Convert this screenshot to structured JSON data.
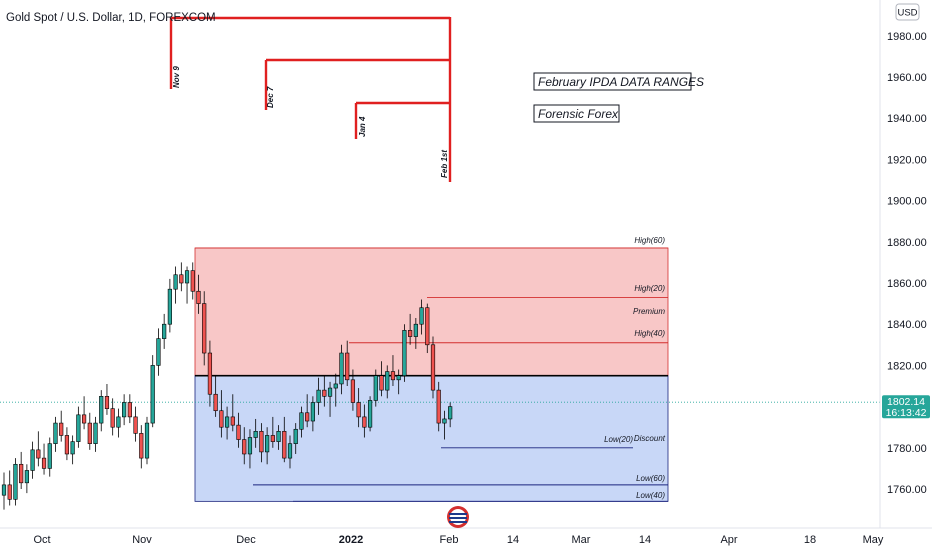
{
  "header": {
    "title": "Gold Spot / U.S. Dollar, 1D, FOREXCOM"
  },
  "currency_badge": "USD",
  "last_price": {
    "value": "1802.14",
    "countdown": "16:13:42",
    "color": "#26a69a"
  },
  "notes": [
    {
      "name": "note-ipda",
      "text": "February IPDA DATA RANGES"
    },
    {
      "name": "note-forensic",
      "text": "Forensic Forex"
    }
  ],
  "zones": {
    "premium": {
      "from": 1815,
      "to": 1877,
      "color": "#f8c7c7"
    },
    "discount": {
      "from": 1754,
      "to": 1815,
      "color": "#c8d7f7"
    }
  },
  "levels": [
    {
      "name": "level-high-60",
      "label": "High(60)",
      "value": 1877,
      "color": "#d32f2f"
    },
    {
      "name": "level-high-20",
      "label": "High(20)",
      "value": 1853,
      "color": "#d32f2f"
    },
    {
      "name": "level-premium",
      "label": "Premium",
      "value": null,
      "color": "#131722"
    },
    {
      "name": "level-high-40",
      "label": "High(40)",
      "value": 1831,
      "color": "#d32f2f"
    },
    {
      "name": "level-equilibrium",
      "label": "",
      "value": 1815,
      "color": "#000000"
    },
    {
      "name": "level-low-20",
      "label": "Low(20)",
      "value": 1780,
      "color": "#1a237e"
    },
    {
      "name": "level-discount",
      "label": "Discount",
      "value": null,
      "color": "#131722"
    },
    {
      "name": "level-low-60",
      "label": "Low(60)",
      "value": 1762,
      "color": "#1a237e"
    },
    {
      "name": "level-low-40",
      "label": "Low(40)",
      "value": 1754,
      "color": "#1a237e"
    }
  ],
  "lookbacks": [
    {
      "name": "lookback-nov-9",
      "label": "Nov 9"
    },
    {
      "name": "lookback-dec-7",
      "label": "Dec 7"
    },
    {
      "name": "lookback-jan-4",
      "label": "Jan 4"
    },
    {
      "name": "lookback-feb-1st",
      "label": "Feb 1st"
    }
  ],
  "chart_data": {
    "type": "candlestick",
    "title": "Gold Spot / U.S. Dollar, 1D, FOREXCOM",
    "y_ticks": [
      "1760.00",
      "1780.00",
      "1800.00",
      "1820.00",
      "1840.00",
      "1860.00",
      "1880.00",
      "1900.00",
      "1920.00",
      "1940.00",
      "1960.00",
      "1980.00"
    ],
    "ylim": [
      1748,
      1995
    ],
    "x_ticks": [
      "Oct",
      "Nov",
      "Dec",
      "2022",
      "Feb",
      "14",
      "Mar",
      "14",
      "Apr",
      "18",
      "May"
    ],
    "up_color": "#26a69a",
    "down_color": "#ef5350",
    "candles": [
      [
        1757,
        1768,
        1750,
        1762
      ],
      [
        1762,
        1769,
        1752,
        1755
      ],
      [
        1755,
        1775,
        1752,
        1772
      ],
      [
        1772,
        1778,
        1760,
        1763
      ],
      [
        1763,
        1772,
        1758,
        1769
      ],
      [
        1769,
        1783,
        1765,
        1779
      ],
      [
        1779,
        1788,
        1771,
        1775
      ],
      [
        1775,
        1782,
        1767,
        1770
      ],
      [
        1770,
        1785,
        1766,
        1782
      ],
      [
        1782,
        1795,
        1778,
        1792
      ],
      [
        1792,
        1798,
        1783,
        1786
      ],
      [
        1786,
        1790,
        1774,
        1777
      ],
      [
        1777,
        1786,
        1772,
        1783
      ],
      [
        1783,
        1800,
        1780,
        1796
      ],
      [
        1796,
        1805,
        1789,
        1792
      ],
      [
        1792,
        1797,
        1779,
        1782
      ],
      [
        1782,
        1795,
        1778,
        1792
      ],
      [
        1792,
        1808,
        1788,
        1805
      ],
      [
        1805,
        1811,
        1796,
        1799
      ],
      [
        1799,
        1804,
        1786,
        1790
      ],
      [
        1790,
        1799,
        1785,
        1795
      ],
      [
        1795,
        1806,
        1791,
        1802
      ],
      [
        1802,
        1806,
        1792,
        1795
      ],
      [
        1795,
        1800,
        1783,
        1787
      ],
      [
        1787,
        1791,
        1770,
        1775
      ],
      [
        1775,
        1795,
        1772,
        1792
      ],
      [
        1792,
        1825,
        1790,
        1820
      ],
      [
        1820,
        1838,
        1815,
        1833
      ],
      [
        1833,
        1845,
        1828,
        1840
      ],
      [
        1840,
        1862,
        1836,
        1857
      ],
      [
        1857,
        1868,
        1850,
        1864
      ],
      [
        1864,
        1870,
        1856,
        1860
      ],
      [
        1860,
        1868,
        1850,
        1866
      ],
      [
        1866,
        1870,
        1852,
        1856
      ],
      [
        1856,
        1864,
        1845,
        1850
      ],
      [
        1850,
        1856,
        1820,
        1826
      ],
      [
        1826,
        1832,
        1800,
        1806
      ],
      [
        1806,
        1815,
        1795,
        1798
      ],
      [
        1798,
        1808,
        1785,
        1790
      ],
      [
        1790,
        1800,
        1784,
        1795
      ],
      [
        1795,
        1806,
        1788,
        1791
      ],
      [
        1791,
        1797,
        1780,
        1784
      ],
      [
        1784,
        1790,
        1772,
        1777
      ],
      [
        1777,
        1789,
        1770,
        1785
      ],
      [
        1785,
        1794,
        1780,
        1788
      ],
      [
        1788,
        1792,
        1773,
        1778
      ],
      [
        1778,
        1790,
        1772,
        1786
      ],
      [
        1786,
        1795,
        1780,
        1783
      ],
      [
        1783,
        1791,
        1779,
        1788
      ],
      [
        1788,
        1795,
        1773,
        1775
      ],
      [
        1775,
        1786,
        1770,
        1782
      ],
      [
        1782,
        1792,
        1777,
        1789
      ],
      [
        1789,
        1800,
        1785,
        1797
      ],
      [
        1797,
        1806,
        1790,
        1793
      ],
      [
        1793,
        1805,
        1788,
        1802
      ],
      [
        1802,
        1814,
        1796,
        1808
      ],
      [
        1808,
        1815,
        1800,
        1805
      ],
      [
        1805,
        1812,
        1795,
        1809
      ],
      [
        1809,
        1816,
        1800,
        1811
      ],
      [
        1811,
        1830,
        1806,
        1826
      ],
      [
        1826,
        1832,
        1810,
        1813
      ],
      [
        1813,
        1818,
        1798,
        1802
      ],
      [
        1802,
        1809,
        1790,
        1795
      ],
      [
        1795,
        1801,
        1785,
        1790
      ],
      [
        1790,
        1805,
        1788,
        1803
      ],
      [
        1803,
        1818,
        1800,
        1815
      ],
      [
        1815,
        1822,
        1805,
        1808
      ],
      [
        1808,
        1820,
        1804,
        1817
      ],
      [
        1817,
        1825,
        1810,
        1813
      ],
      [
        1813,
        1818,
        1806,
        1815
      ],
      [
        1815,
        1840,
        1812,
        1837
      ],
      [
        1837,
        1845,
        1830,
        1834
      ],
      [
        1834,
        1843,
        1828,
        1840
      ],
      [
        1840,
        1852,
        1835,
        1848
      ],
      [
        1848,
        1850,
        1826,
        1830
      ],
      [
        1830,
        1834,
        1804,
        1808
      ],
      [
        1808,
        1812,
        1788,
        1792
      ],
      [
        1792,
        1798,
        1784,
        1794
      ],
      [
        1794,
        1802,
        1790,
        1800
      ]
    ]
  }
}
